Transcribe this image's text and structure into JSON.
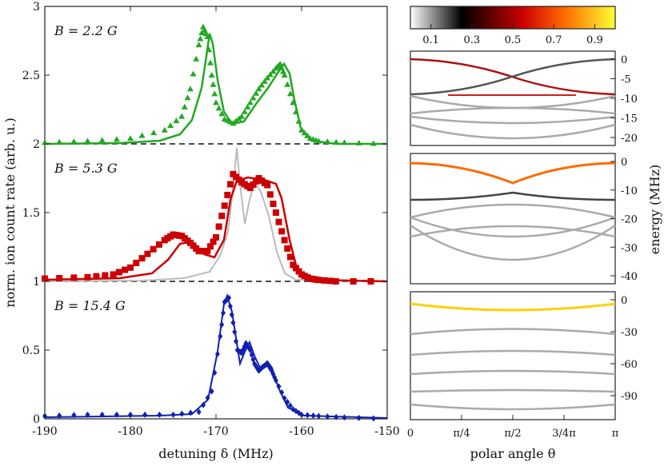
{
  "left_panel": {
    "xlabel": "detuning δ (MHz)",
    "ylabel": "norm. ion count rate (arb. u.)",
    "xticks": [
      "-190",
      "-180",
      "-170",
      "-160",
      "-150"
    ],
    "yticks": [
      {
        "v": 0,
        "t": "0"
      },
      {
        "v": 0.5,
        "t": "0.5"
      },
      {
        "v": 1,
        "t": "1"
      },
      {
        "v": 1.5,
        "t": "1.5"
      },
      {
        "v": 2,
        "t": "2"
      },
      {
        "v": 2.5,
        "t": "2.5"
      },
      {
        "v": 3,
        "t": "3"
      }
    ],
    "annotations": [
      "B = 2.2 G",
      "B = 5.3 G",
      "B = 15.4 G"
    ]
  },
  "colorbar": {
    "ticks": [
      "0.1",
      "0.3",
      "0.5",
      "0.7",
      "0.9"
    ],
    "stops": [
      "#ffffff",
      "#000000",
      "#cc0000",
      "#ff6a00",
      "#ffff33"
    ]
  },
  "right_panels": {
    "xlabel": "polar angle θ",
    "ylabel": "energy (MHz)",
    "xticks": [
      "0",
      "π/4",
      "π/2",
      "3/4π",
      "π"
    ],
    "top_yticks": [
      "0",
      "-5",
      "-10",
      "-15",
      "-20"
    ],
    "mid_yticks": [
      "0",
      "-10",
      "-20",
      "-30",
      "-40"
    ],
    "bot_yticks": [
      "0",
      "-30",
      "-60",
      "-90"
    ]
  },
  "chart_data": [
    {
      "type": "line",
      "title": "",
      "xlabel": "detuning δ (MHz)",
      "ylabel": "norm. ion count rate (arb. u.)",
      "xlim": [
        -190,
        -150
      ],
      "ylim": [
        0,
        3
      ],
      "series": [
        {
          "name": "B = 2.2 G",
          "color": "#22a822",
          "marker": "triangle",
          "offset": 2.0,
          "x": [
            -190,
            -185,
            -180,
            -176,
            -174,
            -173,
            -172,
            -171.5,
            -171,
            -170.5,
            -170,
            -169,
            -168,
            -167,
            -166,
            -165,
            -164,
            -163,
            -162.5,
            -162,
            -161,
            -160,
            -159,
            -158,
            -155,
            -150
          ],
          "y": [
            0.01,
            0.02,
            0.04,
            0.1,
            0.2,
            0.4,
            0.72,
            0.85,
            0.78,
            0.5,
            0.3,
            0.18,
            0.15,
            0.2,
            0.3,
            0.4,
            0.48,
            0.55,
            0.58,
            0.5,
            0.3,
            0.1,
            0.04,
            0.02,
            0.01,
            0.0
          ]
        },
        {
          "name": "B = 5.3 G",
          "color": "#cc0000",
          "marker": "square",
          "offset": 1.0,
          "x": [
            -190,
            -185,
            -182,
            -180,
            -178,
            -176,
            -175,
            -174,
            -173,
            -172,
            -171,
            -170,
            -169,
            -168,
            -167,
            -166,
            -165,
            -164,
            -163,
            -162,
            -161,
            -160,
            -159,
            -158,
            -156,
            -150
          ],
          "y": [
            0.02,
            0.03,
            0.05,
            0.1,
            0.2,
            0.3,
            0.34,
            0.33,
            0.28,
            0.22,
            0.22,
            0.32,
            0.55,
            0.78,
            0.72,
            0.68,
            0.75,
            0.7,
            0.5,
            0.3,
            0.12,
            0.05,
            0.02,
            0.01,
            0.0,
            0.0
          ]
        },
        {
          "name": "B = 15.4 G",
          "color": "#1020b0",
          "marker": "diamond",
          "offset": 0.0,
          "x": [
            -190,
            -185,
            -180,
            -175,
            -172,
            -170.5,
            -169.5,
            -169,
            -168.5,
            -168,
            -167.5,
            -167,
            -166.5,
            -166,
            -165.5,
            -165,
            -164.5,
            -164,
            -163.5,
            -163,
            -162,
            -161,
            -160,
            -158,
            -155,
            -150
          ],
          "y": [
            0.02,
            0.03,
            0.03,
            0.03,
            0.05,
            0.2,
            0.6,
            0.85,
            0.88,
            0.7,
            0.5,
            0.48,
            0.55,
            0.5,
            0.4,
            0.35,
            0.38,
            0.4,
            0.35,
            0.28,
            0.15,
            0.07,
            0.03,
            0.02,
            0.01,
            0.0
          ]
        }
      ]
    }
  ]
}
